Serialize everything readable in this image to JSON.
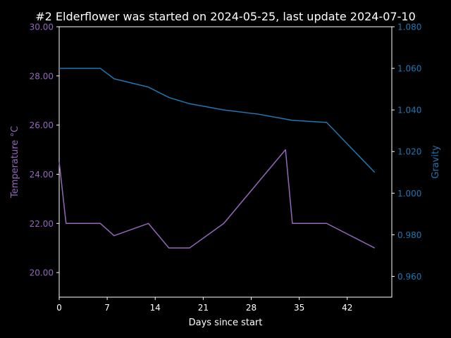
{
  "colors": {
    "background": "#000000",
    "axes": "#ffffff",
    "temperature": "#9467bd",
    "gravity": "#1f77b4"
  },
  "chart_data": {
    "type": "line",
    "title": "#2 Elderflower was started on 2024-05-25, last update 2024-07-10",
    "xlabel": "Days since start",
    "ylabel_left": "Temperature °C",
    "ylabel_right": "Gravity",
    "xlim": [
      0,
      48.5
    ],
    "ylim_left": [
      19.0,
      30.0
    ],
    "ylim_right": [
      0.95,
      1.08
    ],
    "xticks": [
      0,
      7,
      14,
      21,
      28,
      35,
      42
    ],
    "xtick_labels": [
      "0",
      "7",
      "14",
      "21",
      "28",
      "35",
      "42"
    ],
    "yticks_left": [
      20,
      22,
      24,
      26,
      28,
      30
    ],
    "ytick_labels_left": [
      "20.00",
      "22.00",
      "24.00",
      "26.00",
      "28.00",
      "30.00"
    ],
    "yticks_right": [
      0.96,
      0.98,
      1.0,
      1.02,
      1.04,
      1.06,
      1.08
    ],
    "ytick_labels_right": [
      "0.960",
      "0.980",
      "1.000",
      "1.020",
      "1.040",
      "1.060",
      "1.080"
    ],
    "grid": false,
    "series": [
      {
        "axis": "left",
        "x": [
          0,
          1,
          6,
          8,
          13,
          16,
          19,
          24,
          33,
          34,
          39,
          46
        ],
        "y": [
          24.5,
          22.0,
          22.0,
          21.5,
          22.0,
          21.0,
          21.0,
          22.0,
          25.0,
          22.0,
          22.0,
          21.0
        ]
      },
      {
        "axis": "right",
        "x": [
          0,
          6,
          8,
          13,
          16,
          19,
          24,
          29,
          34,
          39,
          46
        ],
        "y": [
          1.06,
          1.06,
          1.055,
          1.051,
          1.046,
          1.043,
          1.04,
          1.038,
          1.035,
          1.034,
          1.01
        ]
      }
    ]
  }
}
